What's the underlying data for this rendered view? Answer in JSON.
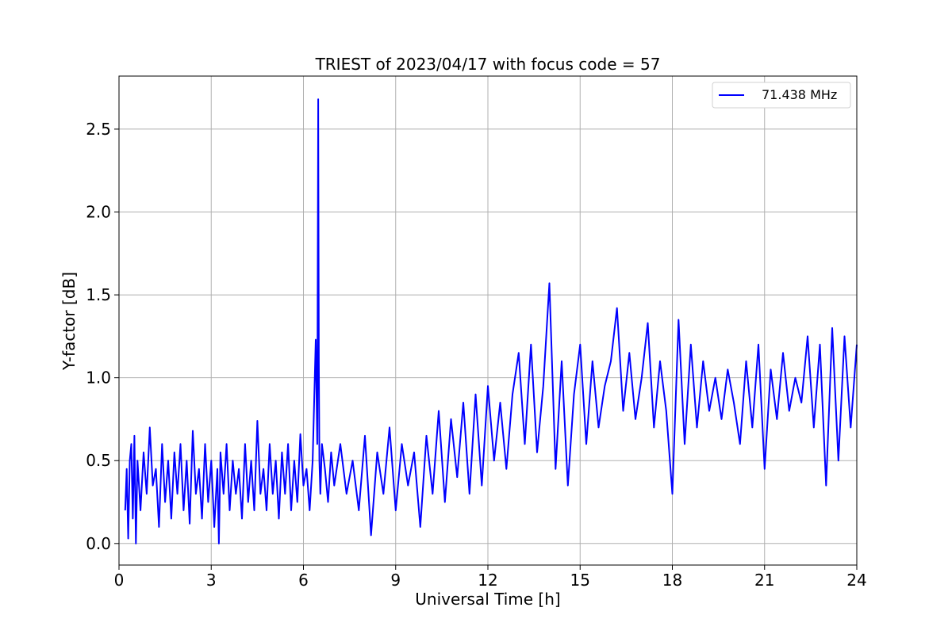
{
  "chart_data": {
    "type": "line",
    "title": "TRIEST of 2023/04/17 with focus code = 57",
    "xlabel": "Universal Time [h]",
    "ylabel": "Y-factor [dB]",
    "xlim": [
      0,
      24
    ],
    "ylim": [
      -0.13,
      2.82
    ],
    "xticks": [
      0,
      3,
      6,
      9,
      12,
      15,
      18,
      21,
      24
    ],
    "yticks": [
      0.0,
      0.5,
      1.0,
      1.5,
      2.0,
      2.5
    ],
    "xtick_labels": [
      "0",
      "3",
      "6",
      "9",
      "12",
      "15",
      "18",
      "21",
      "24"
    ],
    "ytick_labels": [
      "0.0",
      "0.5",
      "1.0",
      "1.5",
      "2.0",
      "2.5"
    ],
    "grid": true,
    "legend_position": "top-right",
    "series": [
      {
        "name": "71.438 MHz",
        "color": "#0000ff",
        "x": [
          0.2,
          0.25,
          0.3,
          0.35,
          0.4,
          0.45,
          0.5,
          0.55,
          0.6,
          0.7,
          0.8,
          0.9,
          1.0,
          1.1,
          1.2,
          1.3,
          1.4,
          1.5,
          1.6,
          1.7,
          1.8,
          1.9,
          2.0,
          2.1,
          2.2,
          2.3,
          2.4,
          2.5,
          2.6,
          2.7,
          2.8,
          2.9,
          3.0,
          3.1,
          3.2,
          3.25,
          3.3,
          3.4,
          3.5,
          3.6,
          3.7,
          3.8,
          3.9,
          4.0,
          4.1,
          4.2,
          4.3,
          4.4,
          4.5,
          4.6,
          4.7,
          4.8,
          4.9,
          5.0,
          5.1,
          5.2,
          5.3,
          5.4,
          5.5,
          5.6,
          5.7,
          5.8,
          5.9,
          6.0,
          6.1,
          6.2,
          6.3,
          6.4,
          6.45,
          6.48,
          6.5,
          6.52,
          6.55,
          6.6,
          6.7,
          6.8,
          6.9,
          7.0,
          7.2,
          7.4,
          7.6,
          7.8,
          8.0,
          8.2,
          8.4,
          8.6,
          8.8,
          9.0,
          9.2,
          9.4,
          9.6,
          9.8,
          10.0,
          10.2,
          10.4,
          10.6,
          10.8,
          11.0,
          11.2,
          11.4,
          11.6,
          11.8,
          12.0,
          12.2,
          12.4,
          12.6,
          12.8,
          13.0,
          13.2,
          13.4,
          13.6,
          13.8,
          14.0,
          14.2,
          14.4,
          14.6,
          14.8,
          15.0,
          15.2,
          15.4,
          15.6,
          15.8,
          16.0,
          16.2,
          16.4,
          16.6,
          16.8,
          17.0,
          17.2,
          17.4,
          17.6,
          17.8,
          18.0,
          18.2,
          18.4,
          18.6,
          18.8,
          19.0,
          19.2,
          19.4,
          19.6,
          19.8,
          20.0,
          20.2,
          20.4,
          20.6,
          20.8,
          21.0,
          21.2,
          21.4,
          21.6,
          21.8,
          22.0,
          22.2,
          22.4,
          22.6,
          22.8,
          23.0,
          23.2,
          23.4,
          23.6,
          23.8,
          24.0
        ],
        "y": [
          0.2,
          0.45,
          0.03,
          0.5,
          0.6,
          0.15,
          0.65,
          0.0,
          0.5,
          0.2,
          0.55,
          0.3,
          0.7,
          0.35,
          0.45,
          0.1,
          0.6,
          0.25,
          0.5,
          0.15,
          0.55,
          0.3,
          0.6,
          0.2,
          0.5,
          0.12,
          0.68,
          0.3,
          0.45,
          0.15,
          0.6,
          0.25,
          0.5,
          0.1,
          0.45,
          0.0,
          0.55,
          0.3,
          0.6,
          0.2,
          0.5,
          0.3,
          0.45,
          0.15,
          0.6,
          0.25,
          0.5,
          0.2,
          0.74,
          0.3,
          0.45,
          0.2,
          0.6,
          0.3,
          0.5,
          0.15,
          0.55,
          0.3,
          0.6,
          0.2,
          0.5,
          0.25,
          0.66,
          0.35,
          0.45,
          0.2,
          0.5,
          1.23,
          0.6,
          2.68,
          1.1,
          0.5,
          0.3,
          0.6,
          0.45,
          0.25,
          0.55,
          0.35,
          0.6,
          0.3,
          0.5,
          0.2,
          0.65,
          0.05,
          0.55,
          0.3,
          0.7,
          0.2,
          0.6,
          0.35,
          0.55,
          0.1,
          0.65,
          0.3,
          0.8,
          0.25,
          0.75,
          0.4,
          0.85,
          0.3,
          0.9,
          0.35,
          0.95,
          0.5,
          0.85,
          0.45,
          0.9,
          1.15,
          0.6,
          1.2,
          0.55,
          0.95,
          1.57,
          0.45,
          1.1,
          0.35,
          0.9,
          1.2,
          0.6,
          1.1,
          0.7,
          0.95,
          1.1,
          1.42,
          0.8,
          1.15,
          0.75,
          1.0,
          1.33,
          0.7,
          1.1,
          0.8,
          0.3,
          1.35,
          0.6,
          1.2,
          0.7,
          1.1,
          0.8,
          1.0,
          0.75,
          1.05,
          0.85,
          0.6,
          1.1,
          0.7,
          1.2,
          0.45,
          1.05,
          0.75,
          1.15,
          0.8,
          1.0,
          0.85,
          1.25,
          0.7,
          1.2,
          0.35,
          1.3,
          0.5,
          1.25,
          0.7,
          1.2
        ]
      }
    ]
  }
}
